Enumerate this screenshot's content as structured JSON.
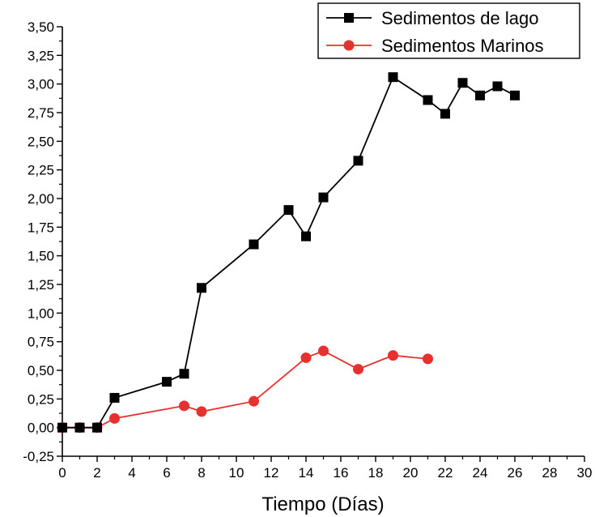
{
  "chart_data": {
    "type": "line",
    "xlabel": "Tiempo  (Días)",
    "ylabel": "",
    "xlim": [
      0,
      30
    ],
    "ylim": [
      -0.25,
      3.5
    ],
    "x_ticks": [
      0,
      2,
      4,
      6,
      8,
      10,
      12,
      14,
      16,
      18,
      20,
      22,
      24,
      26,
      28,
      30
    ],
    "x_tick_labels": [
      "0",
      "2",
      "4",
      "6",
      "8",
      "10",
      "12",
      "14",
      "16",
      "18",
      "20",
      "22",
      "24",
      "26",
      "28",
      "30"
    ],
    "y_ticks": [
      -0.25,
      0,
      0.25,
      0.5,
      0.75,
      1.0,
      1.25,
      1.5,
      1.75,
      2.0,
      2.25,
      2.5,
      2.75,
      3.0,
      3.25,
      3.5
    ],
    "y_tick_labels": [
      "-0,25",
      "0,00",
      "0,25",
      "0,50",
      "0,75",
      "1,00",
      "1,25",
      "1,50",
      "1,75",
      "2,00",
      "2,25",
      "2,50",
      "2,75",
      "3,00",
      "3,25",
      "3,50"
    ],
    "grid": false,
    "legend_position": "top-right",
    "series": [
      {
        "name": "Sedimentos de lago",
        "color": "#000000",
        "marker": "square",
        "x": [
          0,
          1,
          2,
          3,
          6,
          7,
          8,
          11,
          13,
          14,
          15,
          17,
          19,
          21,
          22,
          23,
          24,
          25,
          26
        ],
        "y": [
          0.0,
          0.0,
          0.0,
          0.26,
          0.4,
          0.47,
          1.22,
          1.6,
          1.9,
          1.67,
          2.01,
          2.33,
          3.06,
          2.86,
          2.74,
          3.01,
          2.9,
          2.98,
          2.9
        ]
      },
      {
        "name": "Sedimentos Marinos",
        "color": "#e8302f",
        "marker": "circle",
        "x": [
          0,
          1,
          2,
          3,
          7,
          8,
          11,
          14,
          15,
          17,
          19,
          21
        ],
        "y": [
          0.0,
          0.0,
          0.0,
          0.08,
          0.19,
          0.14,
          0.23,
          0.61,
          0.67,
          0.51,
          0.63,
          0.6
        ]
      }
    ]
  }
}
